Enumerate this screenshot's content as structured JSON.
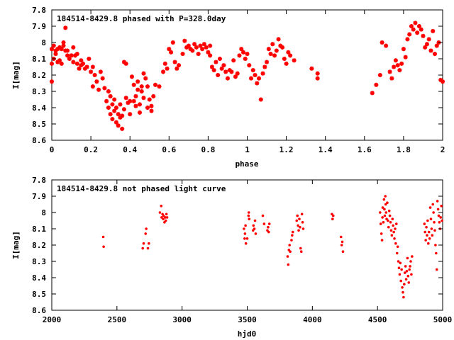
{
  "colors": {
    "points": "#ff0000",
    "axes": "#000000",
    "background": "#ffffff"
  },
  "chart_data": [
    {
      "type": "scatter",
      "title": "184514-8429.8 phased with P=328.0day",
      "xlabel": "phase",
      "ylabel": "I[mag]",
      "xlim": [
        0,
        2
      ],
      "ylim": [
        8.6,
        7.8
      ],
      "y_inverted": true,
      "grid": false,
      "marker": "cross",
      "x_ticks": [
        0,
        0.2,
        0.4,
        0.6,
        0.8,
        1,
        1.2,
        1.4,
        1.6,
        1.8,
        2
      ],
      "x_tick_labels": [
        "0",
        "0.2",
        "0.4",
        "0.6",
        "0.8",
        "1",
        "1.2",
        "1.4",
        "1.6",
        "1.8",
        "2"
      ],
      "y_ticks": [
        7.8,
        7.9,
        8.0,
        8.1,
        8.2,
        8.3,
        8.4,
        8.5,
        8.6
      ],
      "y_tick_labels": [
        "7.8",
        "7.9",
        "8",
        "8.1",
        "8.2",
        "8.3",
        "8.4",
        "8.5",
        "8.6"
      ],
      "points": [
        [
          0.0,
          8.04
        ],
        [
          0.0,
          8.13
        ],
        [
          0.0,
          8.24
        ],
        [
          0.01,
          8.02
        ],
        [
          0.01,
          8.1
        ],
        [
          0.02,
          8.05
        ],
        [
          0.02,
          8.07
        ],
        [
          0.03,
          8.12
        ],
        [
          0.03,
          8.04
        ],
        [
          0.04,
          8.03
        ],
        [
          0.04,
          8.11
        ],
        [
          0.05,
          8.04
        ],
        [
          0.05,
          8.13
        ],
        [
          0.06,
          8.02
        ],
        [
          0.06,
          8.0
        ],
        [
          0.07,
          7.91
        ],
        [
          0.07,
          8.05
        ],
        [
          0.08,
          8.08
        ],
        [
          0.08,
          8.05
        ],
        [
          0.09,
          8.1
        ],
        [
          0.1,
          8.08
        ],
        [
          0.1,
          8.08
        ],
        [
          0.11,
          8.03
        ],
        [
          0.11,
          8.12
        ],
        [
          0.12,
          8.08
        ],
        [
          0.13,
          8.07
        ],
        [
          0.13,
          8.13
        ],
        [
          0.14,
          8.16
        ],
        [
          0.15,
          8.11
        ],
        [
          0.15,
          8.14
        ],
        [
          0.16,
          8.13
        ],
        [
          0.17,
          8.16
        ],
        [
          0.18,
          8.15
        ],
        [
          0.19,
          8.1
        ],
        [
          0.2,
          8.18
        ],
        [
          0.21,
          8.27
        ],
        [
          0.21,
          8.15
        ],
        [
          0.22,
          8.2
        ],
        [
          0.23,
          8.24
        ],
        [
          0.24,
          8.29
        ],
        [
          0.25,
          8.18
        ],
        [
          0.26,
          8.22
        ],
        [
          0.27,
          8.28
        ],
        [
          0.28,
          8.36
        ],
        [
          0.29,
          8.3
        ],
        [
          0.29,
          8.4
        ],
        [
          0.3,
          8.33
        ],
        [
          0.3,
          8.44
        ],
        [
          0.31,
          8.38
        ],
        [
          0.31,
          8.47
        ],
        [
          0.32,
          8.35
        ],
        [
          0.32,
          8.42
        ],
        [
          0.33,
          8.49
        ],
        [
          0.33,
          8.4
        ],
        [
          0.34,
          8.44
        ],
        [
          0.34,
          8.51
        ],
        [
          0.35,
          8.38
        ],
        [
          0.35,
          8.46
        ],
        [
          0.36,
          8.53
        ],
        [
          0.36,
          8.45
        ],
        [
          0.37,
          8.41
        ],
        [
          0.37,
          8.12
        ],
        [
          0.38,
          8.13
        ],
        [
          0.38,
          8.34
        ],
        [
          0.39,
          8.37
        ],
        [
          0.4,
          8.36
        ],
        [
          0.4,
          8.44
        ],
        [
          0.41,
          8.21
        ],
        [
          0.42,
          8.26
        ],
        [
          0.42,
          8.36
        ],
        [
          0.43,
          8.33
        ],
        [
          0.43,
          8.39
        ],
        [
          0.44,
          8.29
        ],
        [
          0.44,
          8.24
        ],
        [
          0.45,
          8.38
        ],
        [
          0.45,
          8.43
        ],
        [
          0.46,
          8.27
        ],
        [
          0.46,
          8.3
        ],
        [
          0.47,
          8.34
        ],
        [
          0.47,
          8.19
        ],
        [
          0.48,
          8.22
        ],
        [
          0.49,
          8.27
        ],
        [
          0.49,
          8.4
        ],
        [
          0.5,
          8.35
        ],
        [
          0.51,
          8.39
        ],
        [
          0.51,
          8.42
        ],
        [
          0.52,
          8.33
        ],
        [
          0.53,
          8.26
        ],
        [
          0.55,
          8.27
        ],
        [
          0.57,
          8.18
        ],
        [
          0.58,
          8.13
        ],
        [
          0.59,
          8.16
        ],
        [
          0.6,
          8.04
        ],
        [
          0.61,
          8.06
        ],
        [
          0.62,
          8.0
        ],
        [
          0.63,
          8.12
        ],
        [
          0.64,
          8.16
        ],
        [
          0.65,
          8.14
        ],
        [
          0.67,
          8.07
        ],
        [
          0.68,
          7.99
        ],
        [
          0.69,
          8.03
        ],
        [
          0.7,
          8.02
        ],
        [
          0.71,
          8.04
        ],
        [
          0.72,
          8.05
        ],
        [
          0.73,
          8.01
        ],
        [
          0.74,
          8.03
        ],
        [
          0.75,
          8.07
        ],
        [
          0.76,
          8.02
        ],
        [
          0.77,
          8.04
        ],
        [
          0.78,
          8.01
        ],
        [
          0.79,
          8.03
        ],
        [
          0.8,
          8.06
        ],
        [
          0.81,
          8.08
        ],
        [
          0.81,
          8.02
        ],
        [
          0.82,
          8.15
        ],
        [
          0.83,
          8.17
        ],
        [
          0.84,
          8.12
        ],
        [
          0.85,
          8.2
        ],
        [
          0.86,
          8.1
        ],
        [
          0.87,
          8.16
        ],
        [
          0.88,
          8.14
        ],
        [
          0.89,
          8.18
        ],
        [
          0.9,
          8.22
        ],
        [
          0.91,
          8.17
        ],
        [
          0.92,
          8.18
        ],
        [
          0.93,
          8.11
        ],
        [
          0.94,
          8.21
        ],
        [
          0.95,
          8.19
        ],
        [
          0.96,
          8.08
        ],
        [
          0.97,
          8.04
        ],
        [
          0.98,
          8.06
        ],
        [
          0.99,
          8.1
        ],
        [
          1.0,
          8.07
        ],
        [
          1.01,
          8.14
        ],
        [
          1.02,
          8.22
        ],
        [
          1.03,
          8.17
        ],
        [
          1.04,
          8.2
        ],
        [
          1.05,
          8.25
        ],
        [
          1.06,
          8.22
        ],
        [
          1.07,
          8.35
        ],
        [
          1.08,
          8.19
        ],
        [
          1.09,
          8.15
        ],
        [
          1.1,
          8.12
        ],
        [
          1.11,
          8.04
        ],
        [
          1.12,
          8.07
        ],
        [
          1.13,
          8.01
        ],
        [
          1.14,
          8.08
        ],
        [
          1.15,
          8.05
        ],
        [
          1.16,
          7.98
        ],
        [
          1.17,
          8.02
        ],
        [
          1.18,
          8.03
        ],
        [
          1.19,
          8.1
        ],
        [
          1.2,
          8.13
        ],
        [
          1.21,
          8.06
        ],
        [
          1.22,
          8.08
        ],
        [
          1.24,
          8.11
        ],
        [
          1.33,
          8.16
        ],
        [
          1.36,
          8.19
        ],
        [
          1.36,
          8.22
        ],
        [
          1.64,
          8.31
        ],
        [
          1.66,
          8.26
        ],
        [
          1.68,
          8.2
        ],
        [
          1.69,
          8.0
        ],
        [
          1.71,
          8.02
        ],
        [
          1.73,
          8.18
        ],
        [
          1.74,
          8.22
        ],
        [
          1.75,
          8.15
        ],
        [
          1.76,
          8.11
        ],
        [
          1.77,
          8.14
        ],
        [
          1.78,
          8.17
        ],
        [
          1.79,
          8.13
        ],
        [
          1.8,
          8.04
        ],
        [
          1.81,
          8.09
        ],
        [
          1.82,
          7.98
        ],
        [
          1.83,
          7.95
        ],
        [
          1.84,
          7.9
        ],
        [
          1.85,
          7.92
        ],
        [
          1.86,
          7.88
        ],
        [
          1.87,
          7.94
        ],
        [
          1.88,
          7.9
        ],
        [
          1.89,
          7.92
        ],
        [
          1.9,
          7.96
        ],
        [
          1.91,
          8.03
        ],
        [
          1.92,
          8.01
        ],
        [
          1.93,
          7.98
        ],
        [
          1.94,
          8.05
        ],
        [
          1.95,
          7.93
        ],
        [
          1.96,
          8.07
        ],
        [
          1.97,
          8.02
        ],
        [
          1.98,
          8.0
        ],
        [
          1.99,
          8.23
        ],
        [
          2.0,
          8.24
        ]
      ]
    },
    {
      "type": "scatter",
      "title": "184514-8429.8 not phased light curve",
      "xlabel": "hjd0",
      "ylabel": "I[mag]",
      "xlim": [
        2000,
        5000
      ],
      "ylim": [
        8.6,
        7.8
      ],
      "y_inverted": true,
      "grid": false,
      "marker": "dot",
      "x_ticks": [
        2000,
        2500,
        3000,
        3500,
        4000,
        4500,
        5000
      ],
      "x_tick_labels": [
        "2000",
        "2500",
        "3000",
        "3500",
        "4000",
        "4500",
        "5000"
      ],
      "y_ticks": [
        7.8,
        7.9,
        8.0,
        8.1,
        8.2,
        8.3,
        8.4,
        8.5,
        8.6
      ],
      "y_tick_labels": [
        "7.8",
        "7.9",
        "8",
        "8.1",
        "8.2",
        "8.3",
        "8.4",
        "8.5",
        "8.6"
      ],
      "points": [
        [
          2395,
          8.15
        ],
        [
          2398,
          8.21
        ],
        [
          2698,
          8.22
        ],
        [
          2705,
          8.19
        ],
        [
          2720,
          8.13
        ],
        [
          2725,
          8.1
        ],
        [
          2738,
          8.22
        ],
        [
          2745,
          8.19
        ],
        [
          2830,
          8.0
        ],
        [
          2840,
          7.96
        ],
        [
          2843,
          8.03
        ],
        [
          2850,
          8.01
        ],
        [
          2855,
          8.04
        ],
        [
          2858,
          8.02
        ],
        [
          2865,
          8.06
        ],
        [
          2870,
          8.03
        ],
        [
          2875,
          8.05
        ],
        [
          2880,
          8.01
        ],
        [
          2885,
          8.03
        ],
        [
          3475,
          8.1
        ],
        [
          3480,
          8.16
        ],
        [
          3483,
          8.13
        ],
        [
          3487,
          8.08
        ],
        [
          3490,
          8.19
        ],
        [
          3500,
          8.16
        ],
        [
          3510,
          8.02
        ],
        [
          3512,
          8.0
        ],
        [
          3515,
          8.04
        ],
        [
          3545,
          8.11
        ],
        [
          3548,
          8.08
        ],
        [
          3555,
          8.1
        ],
        [
          3560,
          8.05
        ],
        [
          3565,
          8.13
        ],
        [
          3620,
          8.02
        ],
        [
          3630,
          8.07
        ],
        [
          3655,
          8.11
        ],
        [
          3660,
          8.09
        ],
        [
          3665,
          8.12
        ],
        [
          3670,
          8.07
        ],
        [
          3810,
          8.27
        ],
        [
          3815,
          8.32
        ],
        [
          3820,
          8.23
        ],
        [
          3825,
          8.2
        ],
        [
          3830,
          8.24
        ],
        [
          3840,
          8.17
        ],
        [
          3845,
          8.14
        ],
        [
          3850,
          8.12
        ],
        [
          3880,
          8.05
        ],
        [
          3885,
          8.02
        ],
        [
          3890,
          8.08
        ],
        [
          3895,
          8.11
        ],
        [
          3900,
          8.04
        ],
        [
          3905,
          8.09
        ],
        [
          3910,
          8.22
        ],
        [
          3915,
          8.24
        ],
        [
          3920,
          8.01
        ],
        [
          3925,
          8.06
        ],
        [
          3930,
          8.1
        ],
        [
          4150,
          8.01
        ],
        [
          4155,
          8.04
        ],
        [
          4160,
          8.02
        ],
        [
          4220,
          8.15
        ],
        [
          4225,
          8.2
        ],
        [
          4230,
          8.18
        ],
        [
          4235,
          8.24
        ],
        [
          4520,
          8.0
        ],
        [
          4525,
          8.07
        ],
        [
          4530,
          8.13
        ],
        [
          4535,
          8.17
        ],
        [
          4538,
          8.03
        ],
        [
          4540,
          7.97
        ],
        [
          4545,
          8.06
        ],
        [
          4550,
          7.92
        ],
        [
          4553,
          7.98
        ],
        [
          4556,
          8.02
        ],
        [
          4560,
          7.9
        ],
        [
          4563,
          7.95
        ],
        [
          4566,
          8.0
        ],
        [
          4570,
          8.04
        ],
        [
          4575,
          7.94
        ],
        [
          4580,
          8.05
        ],
        [
          4585,
          8.09
        ],
        [
          4590,
          7.99
        ],
        [
          4595,
          8.02
        ],
        [
          4600,
          8.06
        ],
        [
          4605,
          8.11
        ],
        [
          4610,
          8.14
        ],
        [
          4615,
          8.04
        ],
        [
          4620,
          8.08
        ],
        [
          4625,
          8.12
        ],
        [
          4630,
          8.16
        ],
        [
          4635,
          8.1
        ],
        [
          4640,
          8.19
        ],
        [
          4645,
          8.07
        ],
        [
          4650,
          8.25
        ],
        [
          4655,
          8.21
        ],
        [
          4660,
          8.3
        ],
        [
          4665,
          8.34
        ],
        [
          4670,
          8.38
        ],
        [
          4675,
          8.31
        ],
        [
          4680,
          8.42
        ],
        [
          4685,
          8.35
        ],
        [
          4690,
          8.46
        ],
        [
          4695,
          8.49
        ],
        [
          4700,
          8.52
        ],
        [
          4705,
          8.44
        ],
        [
          4710,
          8.37
        ],
        [
          4715,
          8.33
        ],
        [
          4720,
          8.41
        ],
        [
          4725,
          8.36
        ],
        [
          4730,
          8.28
        ],
        [
          4735,
          8.39
        ],
        [
          4740,
          8.43
        ],
        [
          4745,
          8.35
        ],
        [
          4750,
          8.33
        ],
        [
          4755,
          8.3
        ],
        [
          4760,
          8.38
        ],
        [
          4765,
          8.27
        ],
        [
          4860,
          8.07
        ],
        [
          4865,
          8.12
        ],
        [
          4870,
          8.17
        ],
        [
          4875,
          8.09
        ],
        [
          4880,
          8.14
        ],
        [
          4885,
          8.05
        ],
        [
          4890,
          8.19
        ],
        [
          4895,
          8.12
        ],
        [
          4900,
          8.16
        ],
        [
          4905,
          7.97
        ],
        [
          4910,
          8.04
        ],
        [
          4915,
          8.1
        ],
        [
          4920,
          8.14
        ],
        [
          4925,
          7.95
        ],
        [
          4930,
          8.0
        ],
        [
          4935,
          8.06
        ],
        [
          4940,
          8.11
        ],
        [
          4945,
          8.2
        ],
        [
          4950,
          8.25
        ],
        [
          4955,
          8.35
        ],
        [
          4960,
          7.93
        ],
        [
          4965,
          7.98
        ],
        [
          4970,
          8.02
        ],
        [
          4975,
          8.06
        ],
        [
          4980,
          8.1
        ],
        [
          4985,
          8.03
        ],
        [
          4990,
          7.96
        ],
        [
          4995,
          8.05
        ]
      ]
    }
  ]
}
